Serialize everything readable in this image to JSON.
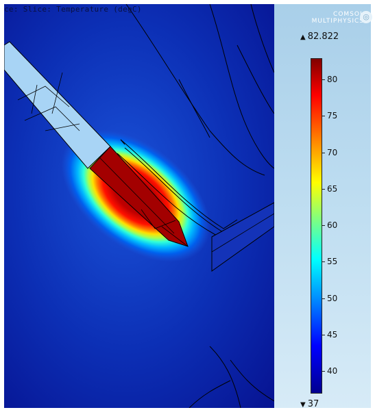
{
  "plot": {
    "title": "ce: Slice: Temperature (degC)"
  },
  "logo": {
    "line1": "COMSOL",
    "line2": "MULTIPHYSICS",
    "icon": "comsol-logo-icon"
  },
  "colorbar": {
    "max_label": "82.822",
    "min_label": "37",
    "max_value": 82.822,
    "min_value": 37,
    "ticks": [
      "80",
      "75",
      "70",
      "65",
      "60",
      "55",
      "50",
      "45",
      "40"
    ],
    "colormap": "rainbow",
    "colors": [
      "#00008f",
      "#0000ff",
      "#0080ff",
      "#00ffff",
      "#80ff80",
      "#ffff00",
      "#ff8000",
      "#ff0000",
      "#800000"
    ]
  },
  "colors": {
    "background": "#0a1d9c",
    "probe": "#a8d4f5",
    "outline": "#000000",
    "sidebar": "#bcdcf0"
  }
}
